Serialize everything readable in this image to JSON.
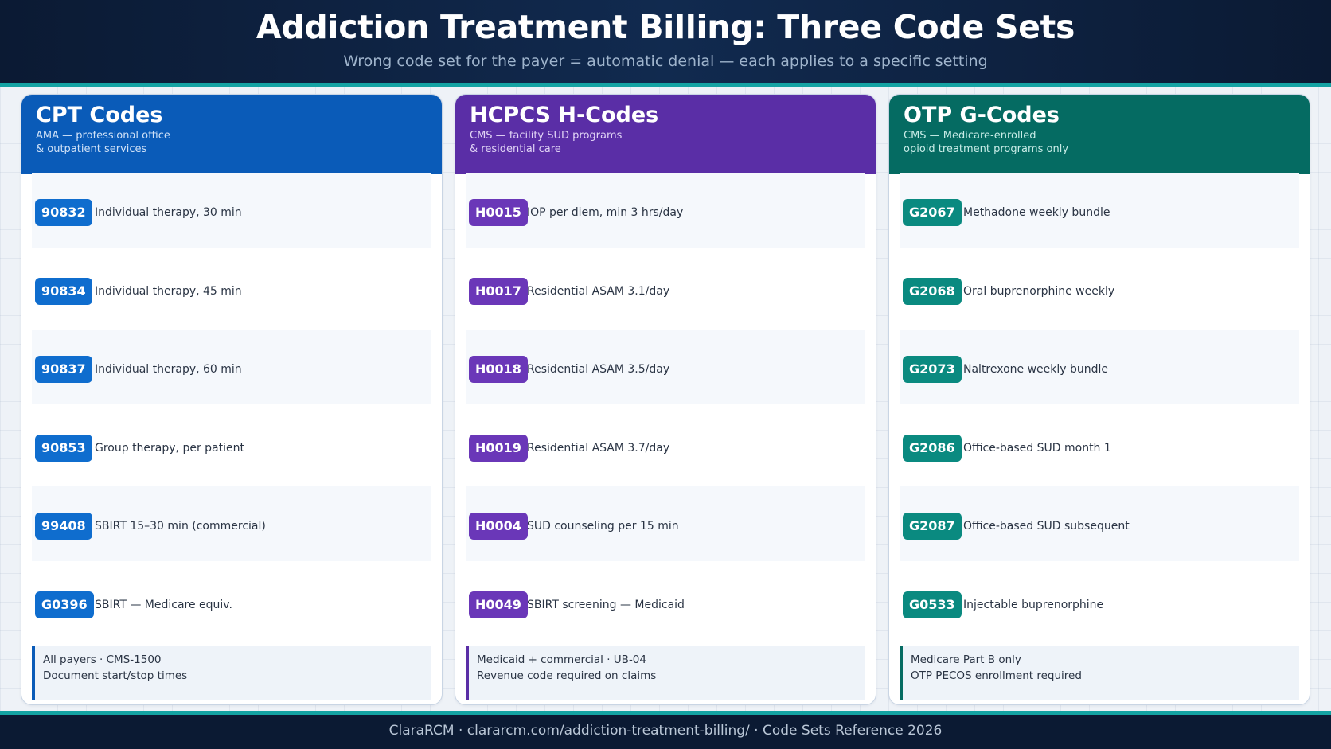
{
  "header": {
    "title": "Addiction Treatment Billing: Three Code Sets",
    "subtitle": "Wrong code set for the payer = automatic denial — each applies to a specific setting"
  },
  "columns": {
    "cpt": {
      "title": "CPT Codes",
      "subtitle": [
        "AMA — professional office",
        "& outpatient services"
      ],
      "codes": [
        {
          "code": "90832",
          "desc": "Individual therapy, 30 min"
        },
        {
          "code": "90834",
          "desc": "Individual therapy, 45 min"
        },
        {
          "code": "90837",
          "desc": "Individual therapy, 60 min"
        },
        {
          "code": "90853",
          "desc": "Group therapy, per patient"
        },
        {
          "code": "99408",
          "desc": "SBIRT 15–30 min (commercial)"
        },
        {
          "code": "G0396",
          "desc": "SBIRT — Medicare equiv."
        }
      ],
      "note": [
        "All payers · CMS-1500",
        "Document start/stop times"
      ],
      "color": "#0a5bb8"
    },
    "hcpcs": {
      "title": "HCPCS H-Codes",
      "subtitle": [
        "CMS — facility SUD programs",
        "& residential care"
      ],
      "codes": [
        {
          "code": "H0015",
          "desc": "IOP per diem, min 3 hrs/day"
        },
        {
          "code": "H0017",
          "desc": "Residential ASAM 3.1/day"
        },
        {
          "code": "H0018",
          "desc": "Residential ASAM 3.5/day"
        },
        {
          "code": "H0019",
          "desc": "Residential ASAM 3.7/day"
        },
        {
          "code": "H0004",
          "desc": "SUD counseling per 15 min"
        },
        {
          "code": "H0049",
          "desc": "SBIRT screening — Medicaid"
        }
      ],
      "note": [
        "Medicaid + commercial · UB-04",
        "Revenue code required on claims"
      ],
      "color": "#5a2ea6"
    },
    "otp": {
      "title": "OTP G-Codes",
      "subtitle": [
        "CMS — Medicare-enrolled",
        "opioid treatment programs only"
      ],
      "codes": [
        {
          "code": "G2067",
          "desc": "Methadone weekly bundle"
        },
        {
          "code": "G2068",
          "desc": "Oral buprenorphine weekly"
        },
        {
          "code": "G2073",
          "desc": "Naltrexone weekly bundle"
        },
        {
          "code": "G2086",
          "desc": "Office-based SUD month 1"
        },
        {
          "code": "G2087",
          "desc": "Office-based SUD subsequent"
        },
        {
          "code": "G0533",
          "desc": "Injectable buprenorphine"
        }
      ],
      "note": [
        "Medicare Part B only",
        "OTP PECOS enrollment required"
      ],
      "color": "#056b62"
    }
  },
  "footer": {
    "text": "ClaraRCM · clararcm.com/addiction-treatment-billing/ · Code Sets Reference 2026"
  }
}
